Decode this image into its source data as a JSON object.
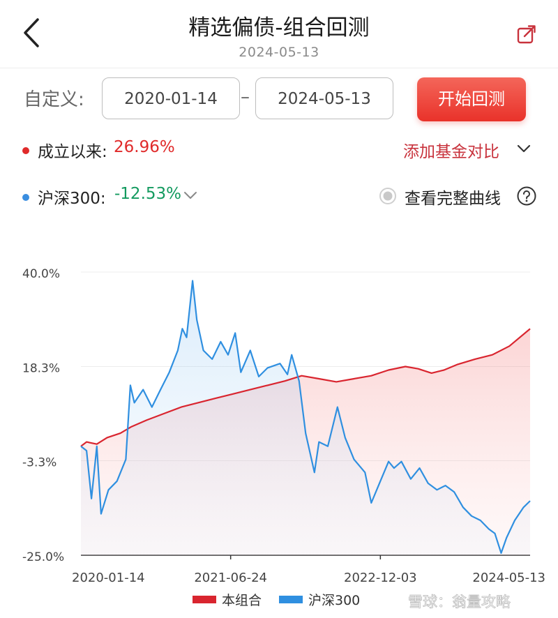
{
  "header": {
    "title": "精选偏债-组合回测",
    "date": "2024-05-13",
    "back_icon": "chevron-left-icon",
    "share_icon": "share-icon"
  },
  "controls": {
    "custom_label": "自定义:",
    "start_date": "2020-01-14",
    "end_date": "2024-05-13",
    "dash": "–",
    "start_button": "开始回测",
    "button_color": "#e9322a"
  },
  "stats": {
    "portfolio_label": "成立以来:",
    "portfolio_return": "26.96%",
    "portfolio_color": "#e02a2a",
    "add_fund": "添加基金对比",
    "index_label": "沪深300:",
    "index_return": "-12.53%",
    "index_color": "#139a5f",
    "full_curve": "查看完整曲线"
  },
  "chart_data": {
    "type": "line",
    "ylim": [
      -25.0,
      40.0
    ],
    "y_ticks": [
      "40.0%",
      "18.3%",
      "-3.3%",
      "-25.0%"
    ],
    "x_ticks": [
      "2020-01-14",
      "2021-06-24",
      "2022-12-03",
      "2024-05-13"
    ],
    "x_range": [
      "2020-01-14",
      "2024-05-13"
    ],
    "legend": {
      "placement": "bottom",
      "items": [
        "本组合",
        "沪深300"
      ]
    },
    "series": [
      {
        "name": "本组合",
        "color": "#d9252f",
        "points": [
          [
            "2020-01-14",
            0.0
          ],
          [
            "2020-02-03",
            1.0
          ],
          [
            "2020-03-10",
            0.5
          ],
          [
            "2020-04-15",
            2.0
          ],
          [
            "2020-06-01",
            3.0
          ],
          [
            "2020-07-10",
            4.5
          ],
          [
            "2020-09-01",
            6.0
          ],
          [
            "2020-11-01",
            7.5
          ],
          [
            "2021-01-01",
            9.0
          ],
          [
            "2021-03-01",
            10.0
          ],
          [
            "2021-05-01",
            11.0
          ],
          [
            "2021-07-01",
            12.0
          ],
          [
            "2021-09-01",
            13.0
          ],
          [
            "2021-11-01",
            14.0
          ],
          [
            "2022-01-01",
            15.0
          ],
          [
            "2022-03-01",
            16.2
          ],
          [
            "2022-05-01",
            15.5
          ],
          [
            "2022-07-01",
            14.8
          ],
          [
            "2022-09-01",
            15.5
          ],
          [
            "2022-11-01",
            16.2
          ],
          [
            "2023-01-01",
            17.5
          ],
          [
            "2023-03-01",
            18.3
          ],
          [
            "2023-04-15",
            17.8
          ],
          [
            "2023-06-01",
            16.8
          ],
          [
            "2023-07-15",
            17.5
          ],
          [
            "2023-09-01",
            18.8
          ],
          [
            "2023-11-01",
            20.0
          ],
          [
            "2024-01-01",
            21.0
          ],
          [
            "2024-03-01",
            23.0
          ],
          [
            "2024-05-13",
            26.96
          ]
        ]
      },
      {
        "name": "沪深300",
        "color": "#2f8fe0",
        "points": [
          [
            "2020-01-14",
            0.0
          ],
          [
            "2020-02-03",
            -1.0
          ],
          [
            "2020-02-20",
            -12.0
          ],
          [
            "2020-03-10",
            0.0
          ],
          [
            "2020-03-25",
            -15.5
          ],
          [
            "2020-04-20",
            -10.0
          ],
          [
            "2020-05-20",
            -8.0
          ],
          [
            "2020-06-20",
            -3.0
          ],
          [
            "2020-07-06",
            14.0
          ],
          [
            "2020-07-20",
            10.0
          ],
          [
            "2020-08-20",
            13.0
          ],
          [
            "2020-09-20",
            9.0
          ],
          [
            "2020-10-20",
            13.0
          ],
          [
            "2020-11-20",
            17.0
          ],
          [
            "2020-12-20",
            22.0
          ],
          [
            "2021-01-05",
            27.0
          ],
          [
            "2021-01-20",
            25.0
          ],
          [
            "2021-02-10",
            38.0
          ],
          [
            "2021-02-25",
            29.0
          ],
          [
            "2021-03-20",
            22.0
          ],
          [
            "2021-04-20",
            20.0
          ],
          [
            "2021-05-20",
            24.0
          ],
          [
            "2021-06-15",
            21.0
          ],
          [
            "2021-07-10",
            26.0
          ],
          [
            "2021-07-30",
            17.0
          ],
          [
            "2021-09-01",
            22.0
          ],
          [
            "2021-10-01",
            16.0
          ],
          [
            "2021-11-01",
            18.0
          ],
          [
            "2021-12-15",
            19.0
          ],
          [
            "2022-01-10",
            16.5
          ],
          [
            "2022-01-25",
            21.0
          ],
          [
            "2022-02-20",
            15.0
          ],
          [
            "2022-03-15",
            3.0
          ],
          [
            "2022-04-15",
            -6.0
          ],
          [
            "2022-05-01",
            1.0
          ],
          [
            "2022-06-01",
            0.0
          ],
          [
            "2022-07-05",
            9.0
          ],
          [
            "2022-08-01",
            2.0
          ],
          [
            "2022-09-01",
            -3.0
          ],
          [
            "2022-10-10",
            -6.0
          ],
          [
            "2022-11-01",
            -13.0
          ],
          [
            "2022-12-03",
            -8.0
          ],
          [
            "2023-01-01",
            -3.5
          ],
          [
            "2023-01-20",
            -5.0
          ],
          [
            "2023-02-15",
            -3.5
          ],
          [
            "2023-03-20",
            -7.5
          ],
          [
            "2023-04-20",
            -5.0
          ],
          [
            "2023-05-20",
            -8.5
          ],
          [
            "2023-06-20",
            -10.0
          ],
          [
            "2023-07-20",
            -9.0
          ],
          [
            "2023-08-20",
            -10.5
          ],
          [
            "2023-09-20",
            -14.0
          ],
          [
            "2023-10-20",
            -16.0
          ],
          [
            "2023-11-20",
            -17.0
          ],
          [
            "2023-12-20",
            -19.0
          ],
          [
            "2024-01-10",
            -20.0
          ],
          [
            "2024-02-01",
            -24.5
          ],
          [
            "2024-02-20",
            -21.0
          ],
          [
            "2024-03-20",
            -17.0
          ],
          [
            "2024-04-20",
            -14.0
          ],
          [
            "2024-05-13",
            -12.53
          ]
        ]
      }
    ]
  },
  "watermark": "雪球：翁量攻略"
}
